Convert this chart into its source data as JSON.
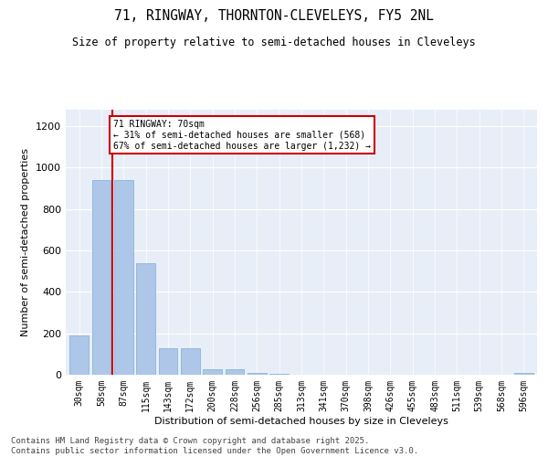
{
  "title1": "71, RINGWAY, THORNTON-CLEVELEYS, FY5 2NL",
  "title2": "Size of property relative to semi-detached houses in Cleveleys",
  "xlabel": "Distribution of semi-detached houses by size in Cleveleys",
  "ylabel": "Number of semi-detached properties",
  "categories": [
    "30sqm",
    "58sqm",
    "87sqm",
    "115sqm",
    "143sqm",
    "172sqm",
    "200sqm",
    "228sqm",
    "256sqm",
    "285sqm",
    "313sqm",
    "341sqm",
    "370sqm",
    "398sqm",
    "426sqm",
    "455sqm",
    "483sqm",
    "511sqm",
    "539sqm",
    "568sqm",
    "596sqm"
  ],
  "values": [
    192,
    940,
    940,
    540,
    130,
    130,
    28,
    28,
    7,
    5,
    0,
    0,
    0,
    0,
    0,
    0,
    0,
    0,
    0,
    0,
    8
  ],
  "bar_color": "#aec6e8",
  "bar_edge_color": "#7aadd4",
  "annotation_text_line1": "71 RINGWAY: 70sqm",
  "annotation_text_line2": "← 31% of semi-detached houses are smaller (568)",
  "annotation_text_line3": "67% of semi-detached houses are larger (1,232) →",
  "vline_color": "#cc0000",
  "vline_x": 1.5,
  "ylim": [
    0,
    1280
  ],
  "yticks": [
    0,
    200,
    400,
    600,
    800,
    1000,
    1200
  ],
  "bg_color": "#e8eef7",
  "footer_line1": "Contains HM Land Registry data © Crown copyright and database right 2025.",
  "footer_line2": "Contains public sector information licensed under the Open Government Licence v3.0."
}
